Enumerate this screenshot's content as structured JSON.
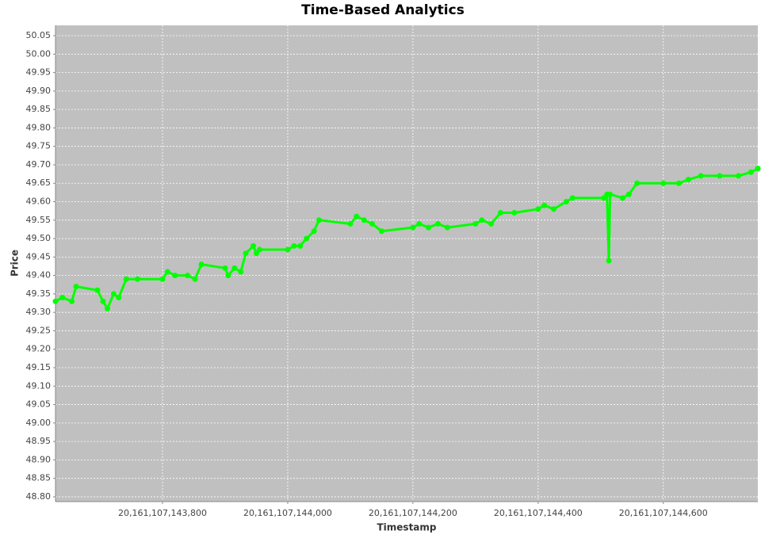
{
  "chart_data": {
    "type": "line",
    "title": "Time-Based Analytics",
    "x_label": "Timestamp",
    "y_label": "Price",
    "background": "#c0c0c0",
    "grid": true,
    "series": [
      {
        "name": "Price",
        "color": "#00ff00",
        "x": [
          20161107143629,
          20161107143640,
          20161107143655,
          20161107143662,
          20161107143696,
          20161107143705,
          20161107143712,
          20161107143722,
          20161107143730,
          20161107143742,
          20161107143760,
          20161107143800,
          20161107143808,
          20161107143820,
          20161107143840,
          20161107143852,
          20161107143862,
          20161107143900,
          20161107143905,
          20161107143915,
          20161107143925,
          20161107143933,
          20161107143945,
          20161107143950,
          20161107143955,
          20161107144000,
          20161107144010,
          20161107144020,
          20161107144030,
          20161107144042,
          20161107144050,
          20161107144100,
          20161107144110,
          20161107144122,
          20161107144135,
          20161107144150,
          20161107144200,
          20161107144210,
          20161107144225,
          20161107144240,
          20161107144255,
          20161107144300,
          20161107144310,
          20161107144325,
          20161107144340,
          20161107144362,
          20161107144400,
          20161107144410,
          20161107144425,
          20161107144445,
          20161107144455,
          20161107144505,
          20161107144510,
          20161107144513,
          20161107144515,
          20161107144535,
          20161107144545,
          20161107144558,
          20161107144600,
          20161107144625,
          20161107144640,
          20161107144660,
          20161107144690,
          20161107144720,
          20161107144740,
          20161107144751
        ],
        "values": [
          49.33,
          49.34,
          49.33,
          49.37,
          49.36,
          49.33,
          49.31,
          49.35,
          49.34,
          49.39,
          49.39,
          49.39,
          49.41,
          49.4,
          49.4,
          49.39,
          49.43,
          49.42,
          49.4,
          49.42,
          49.41,
          49.46,
          49.48,
          49.46,
          49.47,
          49.47,
          49.48,
          49.48,
          49.5,
          49.52,
          49.55,
          49.54,
          49.56,
          49.55,
          49.54,
          49.52,
          49.53,
          49.54,
          49.53,
          49.54,
          49.53,
          49.54,
          49.55,
          49.54,
          49.57,
          49.57,
          49.58,
          49.59,
          49.58,
          49.6,
          49.61,
          49.61,
          49.62,
          49.44,
          49.62,
          49.61,
          49.62,
          49.65,
          49.65,
          49.65,
          49.66,
          49.67,
          49.67,
          49.67,
          49.68,
          49.69
        ]
      }
    ],
    "xlim": [
      20161107143629,
      20161107144751
    ],
    "xticks": [
      {
        "value": 20161107143800,
        "label": "20,161,107,143,800"
      },
      {
        "value": 20161107144000,
        "label": "20,161,107,144,000"
      },
      {
        "value": 20161107144200,
        "label": "20,161,107,144,200"
      },
      {
        "value": 20161107144400,
        "label": "20,161,107,144,400"
      },
      {
        "value": 20161107144600,
        "label": "20,161,107,144,600"
      }
    ],
    "ylim": [
      48.787,
      50.078
    ],
    "yticks": [
      {
        "value": 48.8,
        "label": "48.80"
      },
      48.85,
      {
        "value": 48.9,
        "label": "48.90"
      },
      48.95,
      {
        "value": 49,
        "label": "49.00"
      },
      49.05,
      {
        "value": 49.1,
        "label": "49.10"
      },
      49.15,
      {
        "value": 49.2,
        "label": "49.20"
      },
      49.25,
      {
        "value": 49.3,
        "label": "49.30"
      },
      49.35,
      {
        "value": 49.4,
        "label": "49.40"
      },
      49.45,
      {
        "value": 49.5,
        "label": "49.50"
      },
      49.55,
      {
        "value": 49.6,
        "label": "49.60"
      },
      49.65,
      {
        "value": 49.7,
        "label": "49.70"
      },
      49.75,
      {
        "value": 49.8,
        "label": "49.80"
      },
      49.85,
      {
        "value": 49.9,
        "label": "49.90"
      },
      49.95,
      {
        "value": 50,
        "label": "50.00"
      },
      50.05
    ]
  }
}
